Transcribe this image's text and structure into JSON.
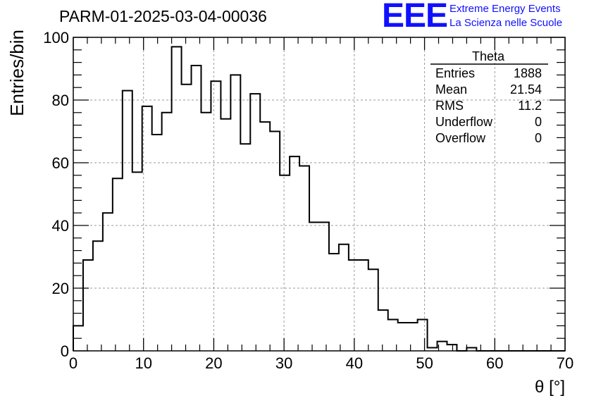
{
  "header": {
    "run_title": "PARM-01-2025-03-04-00036",
    "logo_text": "EEE",
    "logo_line1": "Extreme Energy Events",
    "logo_line2": "La Scienza nelle Scuole",
    "logo_color": "#1010ff"
  },
  "stats": {
    "name": "Theta",
    "rows": [
      {
        "label": "Entries",
        "value": "1888"
      },
      {
        "label": "Mean",
        "value": "21.54"
      },
      {
        "label": "RMS",
        "value": "11.2"
      },
      {
        "label": "Underflow",
        "value": "0"
      },
      {
        "label": "Overflow",
        "value": "0"
      }
    ]
  },
  "chart_data": {
    "type": "histogram",
    "title": "PARM-01-2025-03-04-00036",
    "xlabel": "θ [°]",
    "ylabel": "Entries/bin",
    "xlim": [
      0,
      70
    ],
    "ylim": [
      0,
      100
    ],
    "bin_width": 1.4,
    "bin_start": 0,
    "xticks": [
      0,
      10,
      20,
      30,
      40,
      50,
      60,
      70
    ],
    "yticks": [
      0,
      20,
      40,
      60,
      80,
      100
    ],
    "grid": true,
    "values": [
      8,
      29,
      35,
      44,
      55,
      83,
      57,
      78,
      69,
      76,
      97,
      85,
      91,
      76,
      86,
      74,
      88,
      66,
      82,
      73,
      70,
      56,
      62,
      59,
      41,
      41,
      31,
      34,
      29,
      29,
      26,
      13,
      10,
      9,
      9,
      10,
      1,
      3,
      2,
      0,
      1,
      0,
      0,
      0,
      0,
      0,
      0,
      0,
      0,
      0
    ],
    "line_color": "#000000",
    "grid_color": "#999999"
  }
}
